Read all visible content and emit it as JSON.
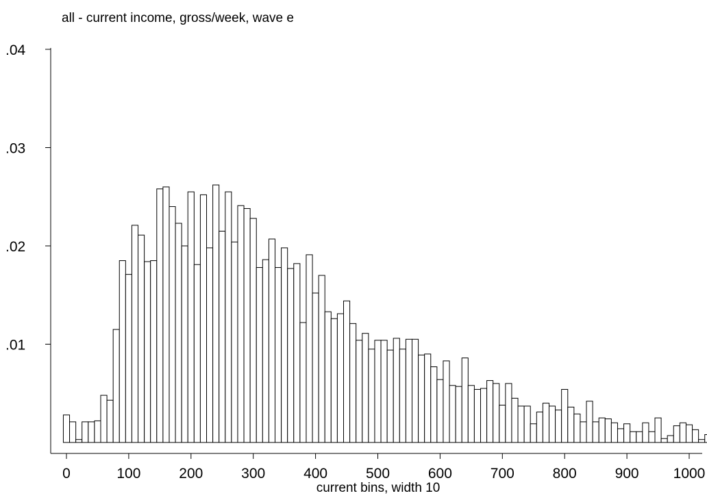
{
  "chart_data": {
    "type": "bar",
    "title": "all - current income, gross/week, wave e",
    "xlabel": "current bins, width 10",
    "ylabel": "",
    "xlim": [
      0,
      1000
    ],
    "ylim": [
      0,
      0.04
    ],
    "bin_width": 10,
    "xticks": [
      0,
      100,
      200,
      300,
      400,
      500,
      600,
      700,
      800,
      900,
      1000
    ],
    "xtick_labels": [
      "0",
      "100",
      "200",
      "300",
      "400",
      "500",
      "600",
      "700",
      "800",
      "900",
      "1000"
    ],
    "yticks": [
      0.01,
      0.02,
      0.03,
      0.04
    ],
    "ytick_labels": [
      ".01",
      ".02",
      ".03",
      ".04"
    ],
    "grid": false,
    "bar_color": "#ffffff",
    "edge_color": "#000000",
    "values": [
      0.0028,
      0.0021,
      0.0003,
      0.0021,
      0.0021,
      0.0022,
      0.0048,
      0.0043,
      0.0115,
      0.0185,
      0.0171,
      0.0221,
      0.0211,
      0.0184,
      0.0185,
      0.0258,
      0.026,
      0.024,
      0.0223,
      0.02,
      0.0255,
      0.0181,
      0.0252,
      0.0198,
      0.0262,
      0.0215,
      0.0255,
      0.0204,
      0.0241,
      0.0238,
      0.0228,
      0.0178,
      0.0186,
      0.0207,
      0.0178,
      0.0198,
      0.0177,
      0.0182,
      0.0122,
      0.0191,
      0.0152,
      0.017,
      0.0133,
      0.0126,
      0.0131,
      0.0144,
      0.0121,
      0.0104,
      0.0111,
      0.0095,
      0.0104,
      0.0104,
      0.0094,
      0.0106,
      0.0095,
      0.0105,
      0.0105,
      0.0089,
      0.009,
      0.0077,
      0.0064,
      0.0083,
      0.0058,
      0.0057,
      0.0086,
      0.0058,
      0.0054,
      0.0055,
      0.0063,
      0.006,
      0.0038,
      0.006,
      0.0045,
      0.0037,
      0.0037,
      0.0019,
      0.0031,
      0.004,
      0.0037,
      0.0033,
      0.0054,
      0.0036,
      0.0029,
      0.0021,
      0.0042,
      0.0021,
      0.0025,
      0.0024,
      0.002,
      0.0014,
      0.0019,
      0.0011,
      0.0011,
      0.002,
      0.0011,
      0.0025,
      0.0004,
      0.0007,
      0.0017,
      0.002,
      0.0018,
      0.0013,
      0.0003,
      0.0008
    ]
  }
}
